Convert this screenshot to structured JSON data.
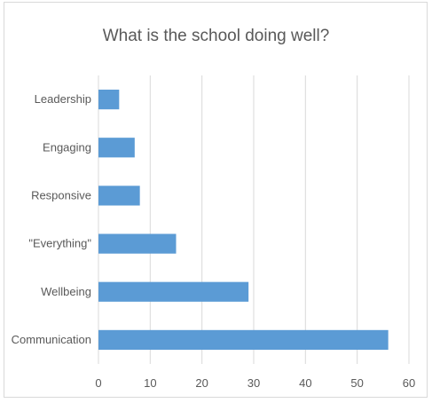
{
  "chart_data": {
    "type": "bar",
    "orientation": "horizontal",
    "title": "What is the school doing well?",
    "categories": [
      "Leadership",
      "Engaging",
      "Responsive",
      "\"Everything\"",
      "Wellbeing",
      "Communication"
    ],
    "values": [
      4,
      7,
      8,
      15,
      29,
      56
    ],
    "xlim": [
      0,
      60
    ],
    "xticks": [
      "0",
      "10",
      "20",
      "30",
      "40",
      "50",
      "60"
    ],
    "grid": true,
    "legend": "none",
    "bar_color": "#5b9bd5",
    "grid_color": "#d9d9d9",
    "text_color": "#595959"
  }
}
